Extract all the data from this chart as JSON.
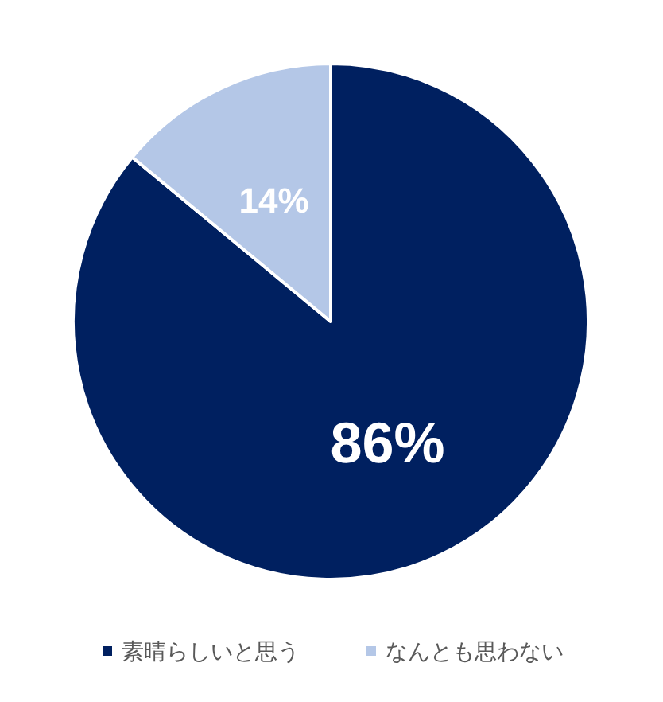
{
  "chart_data": {
    "type": "pie",
    "categories": [
      "素晴らしいと思う",
      "なんとも思わない"
    ],
    "values": [
      86,
      14
    ],
    "colors": [
      "#002060",
      "#b4c7e7"
    ],
    "value_labels": [
      "86%",
      "14%"
    ],
    "legend": "bottom"
  }
}
